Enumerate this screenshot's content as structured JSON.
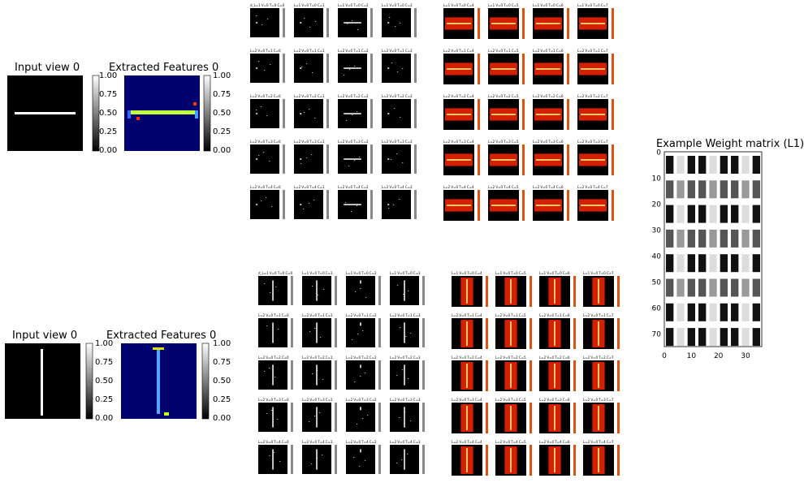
{
  "chart_data": {
    "type": "heatmap",
    "panels": {
      "input_top": {
        "title": "Input view 0",
        "orientation": "horizontal",
        "colormap": "gray"
      },
      "features_top": {
        "title": "Extracted Features 0",
        "orientation": "horizontal",
        "colormap": "jet"
      },
      "input_bottom": {
        "title": "Input view 0",
        "orientation": "vertical",
        "colormap": "gray"
      },
      "features_bottom": {
        "title": "Extracted Features 0",
        "orientation": "vertical",
        "colormap": "jet"
      }
    },
    "colorbar_ticks": [
      "1.00",
      "0.75",
      "0.50",
      "0.25",
      "0.00"
    ],
    "weight_matrix": {
      "title": "Example Weight matrix (L1)",
      "yticks": [
        "0",
        "10",
        "20",
        "30",
        "40",
        "50",
        "60",
        "70"
      ],
      "xticks": [
        "0",
        "10",
        "20",
        "30"
      ],
      "xlim": [
        0,
        36
      ],
      "ylim": [
        0,
        75
      ]
    },
    "grid_top_left": {
      "labels": [
        [
          "d_L=1 V=0 T=0 C=0",
          "L=1 V=0 T=0 C=1",
          "L=1 V=0 T=0 C=2",
          "L=1 V=0 T=0 C=3"
        ],
        [
          "L=2 V=0 T=1 C=0",
          "L=2 V=0 T=1 C=1",
          "L=2 V=0 T=1 C=2",
          "L=2 V=0 T=1 C=3"
        ],
        [
          "L=2 V=0 T=2 C=0",
          "L=2 V=0 T=2 C=1",
          "L=2 V=0 T=2 C=2",
          "L=2 V=0 T=2 C=3"
        ],
        [
          "L=2 V=0 T=3 C=0",
          "L=2 V=0 T=3 C=1",
          "L=2 V=0 T=3 C=2",
          "L=2 V=0 T=3 C=3"
        ],
        [
          "L=2 V=0 T=4 C=0",
          "L=2 V=0 T=4 C=1",
          "L=2 V=0 T=4 C=2",
          "L=2 V=0 T=4 C=3"
        ]
      ]
    },
    "grid_top_right": {
      "labels": [
        [
          "L=1 V=0 T=0 C=4",
          "L=1 V=0 T=0 C=5",
          "L=1 V=0 T=0 C=6",
          "L=1 V=0 T=0 C=7"
        ],
        [
          "L=2 V=0 T=1 C=4",
          "L=2 V=0 T=1 C=5",
          "L=2 V=0 T=1 C=6",
          "L=2 V=0 T=1 C=7"
        ],
        [
          "L=2 V=0 T=2 C=4",
          "L=2 V=0 T=2 C=5",
          "L=2 V=0 T=2 C=6",
          "L=2 V=0 T=2 C=7"
        ],
        [
          "L=2 V=0 T=3 C=4",
          "L=2 V=0 T=3 C=5",
          "L=2 V=0 T=3 C=6",
          "L=2 V=0 T=3 C=7"
        ],
        [
          "L=2 V=0 T=4 C=4",
          "L=2 V=0 T=4 C=5",
          "L=2 V=0 T=4 C=6",
          "L=2 V=0 T=4 C=7"
        ]
      ]
    },
    "grid_bottom_left": {
      "labels": [
        [
          "d_L=1 V=0 T=0 C=0",
          "L=1 V=0 T=0 C=1",
          "L=1 V=0 T=0 C=2",
          "L=1 V=0 T=0 C=3"
        ],
        [
          "L=2 V=0 T=1 C=0",
          "L=2 V=0 T=1 C=1",
          "L=2 V=0 T=1 C=2",
          "L=2 V=0 T=1 C=3"
        ],
        [
          "L=2 V=0 T=2 C=0",
          "L=2 V=0 T=2 C=1",
          "L=2 V=0 T=2 C=2",
          "L=2 V=0 T=2 C=3"
        ],
        [
          "L=2 V=0 T=3 C=0",
          "L=2 V=0 T=3 C=1",
          "L=2 V=0 T=3 C=2",
          "L=2 V=0 T=3 C=3"
        ],
        [
          "L=2 V=0 T=4 C=0",
          "L=2 V=0 T=4 C=1",
          "L=2 V=0 T=4 C=2",
          "L=2 V=0 T=4 C=3"
        ]
      ]
    },
    "grid_bottom_right": {
      "labels": [
        [
          "L=1 V=0 T=0 C=4",
          "L=1 V=0 T=0 C=5",
          "L=1 V=0 T=0 C=6",
          "L=1 V=0 T=0 C=7"
        ],
        [
          "L=2 V=0 T=1 C=4",
          "L=2 V=0 T=1 C=5",
          "L=2 V=0 T=1 C=6",
          "L=2 V=0 T=1 C=7"
        ],
        [
          "L=2 V=0 T=2 C=4",
          "L=2 V=0 T=2 C=5",
          "L=2 V=0 T=2 C=6",
          "L=2 V=0 T=2 C=7"
        ],
        [
          "L=2 V=0 T=3 C=4",
          "L=2 V=0 T=3 C=5",
          "L=2 V=0 T=3 C=6",
          "L=2 V=0 T=3 C=7"
        ],
        [
          "L=2 V=0 T=4 C=4",
          "L=2 V=0 T=4 C=5",
          "L=2 V=0 T=4 C=6",
          "L=2 V=0 T=4 C=7"
        ]
      ]
    }
  },
  "colors": {
    "background": "#ffffff",
    "image_black": "#000000",
    "jet_low": "#00006e",
    "jet_high": "#bfff3f",
    "hot_red": "#d42000",
    "hot_yellow": "#ffff80"
  }
}
